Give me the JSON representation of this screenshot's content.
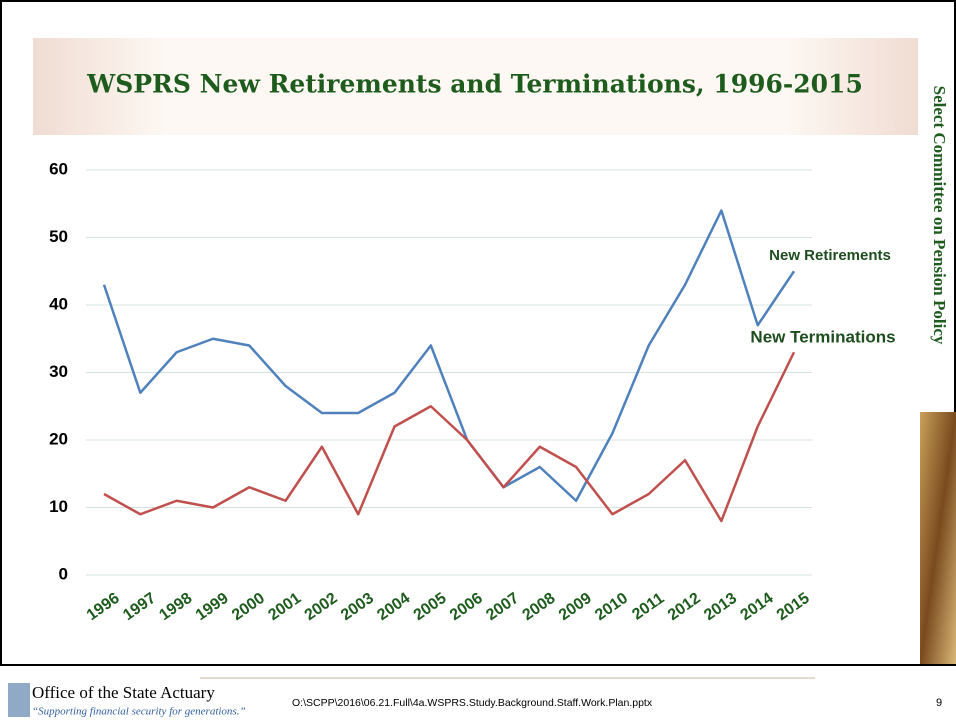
{
  "chart_data": {
    "type": "line",
    "title": "WSPRS New Retirements and Terminations, 1996-2015",
    "categories": [
      "1996",
      "1997",
      "1998",
      "1999",
      "2000",
      "2001",
      "2002",
      "2003",
      "2004",
      "2005",
      "2006",
      "2007",
      "2008",
      "2009",
      "2010",
      "2011",
      "2012",
      "2013",
      "2014",
      "2015"
    ],
    "series": [
      {
        "name": "New Retirements",
        "color": "#4f81bd",
        "values": [
          43,
          27,
          33,
          35,
          34,
          28,
          24,
          24,
          27,
          34,
          20,
          13,
          16,
          11,
          21,
          34,
          43,
          54,
          37,
          45
        ]
      },
      {
        "name": "New Terminations",
        "color": "#c0504d",
        "values": [
          12,
          9,
          11,
          10,
          13,
          11,
          19,
          9,
          22,
          25,
          20,
          13,
          19,
          16,
          9,
          12,
          17,
          8,
          22,
          33
        ]
      }
    ],
    "ylim": [
      0,
      60
    ],
    "yticks": [
      0,
      10,
      20,
      30,
      40,
      50,
      60
    ],
    "grid": true
  },
  "slide": {
    "sidebar": "Select Committee on Pension Policy",
    "org": "Office of the State Actuary",
    "tagline": "“Supporting financial security for generations.”",
    "file_path": "O:\\SCPP\\2016\\06.21.Full\\4a.WSPRS.Study.Background.Staff.Work.Plan.pptx",
    "page_number": "9"
  }
}
